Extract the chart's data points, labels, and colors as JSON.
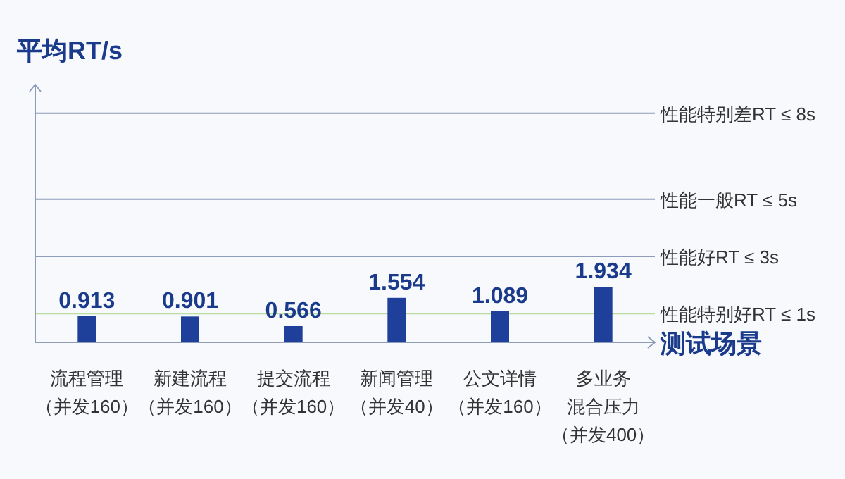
{
  "chart_data": {
    "type": "bar",
    "ylabel": "平均RT/s",
    "xlabel": "测试场景",
    "categories": [
      "流程管理（并发160）",
      "新建流程（并发160）",
      "提交流程（并发160）",
      "新闻管理（并发40）",
      "公文详情（并发160）",
      "多业务混合压力（并发400）"
    ],
    "values": [
      0.913,
      0.901,
      0.566,
      1.554,
      1.089,
      1.934
    ],
    "color": "#1e3f9a",
    "data_labels": true,
    "ylim": [
      0,
      9
    ],
    "tick_labels": "x",
    "ref_lines": [
      {
        "axis": "y",
        "value": 8,
        "label": "性能特别差RT ≤ 8s",
        "color": "#8d9cb8"
      },
      {
        "axis": "y",
        "value": 5,
        "label": "性能一般RT ≤ 5s",
        "color": "#8d9cb8"
      },
      {
        "axis": "y",
        "value": 3,
        "label": "性能好RT ≤ 3s",
        "color": "#8d9cb8"
      },
      {
        "axis": "y",
        "value": 1,
        "label": "性能特别好RT ≤ 1s",
        "color": "#b9dca0"
      }
    ]
  }
}
